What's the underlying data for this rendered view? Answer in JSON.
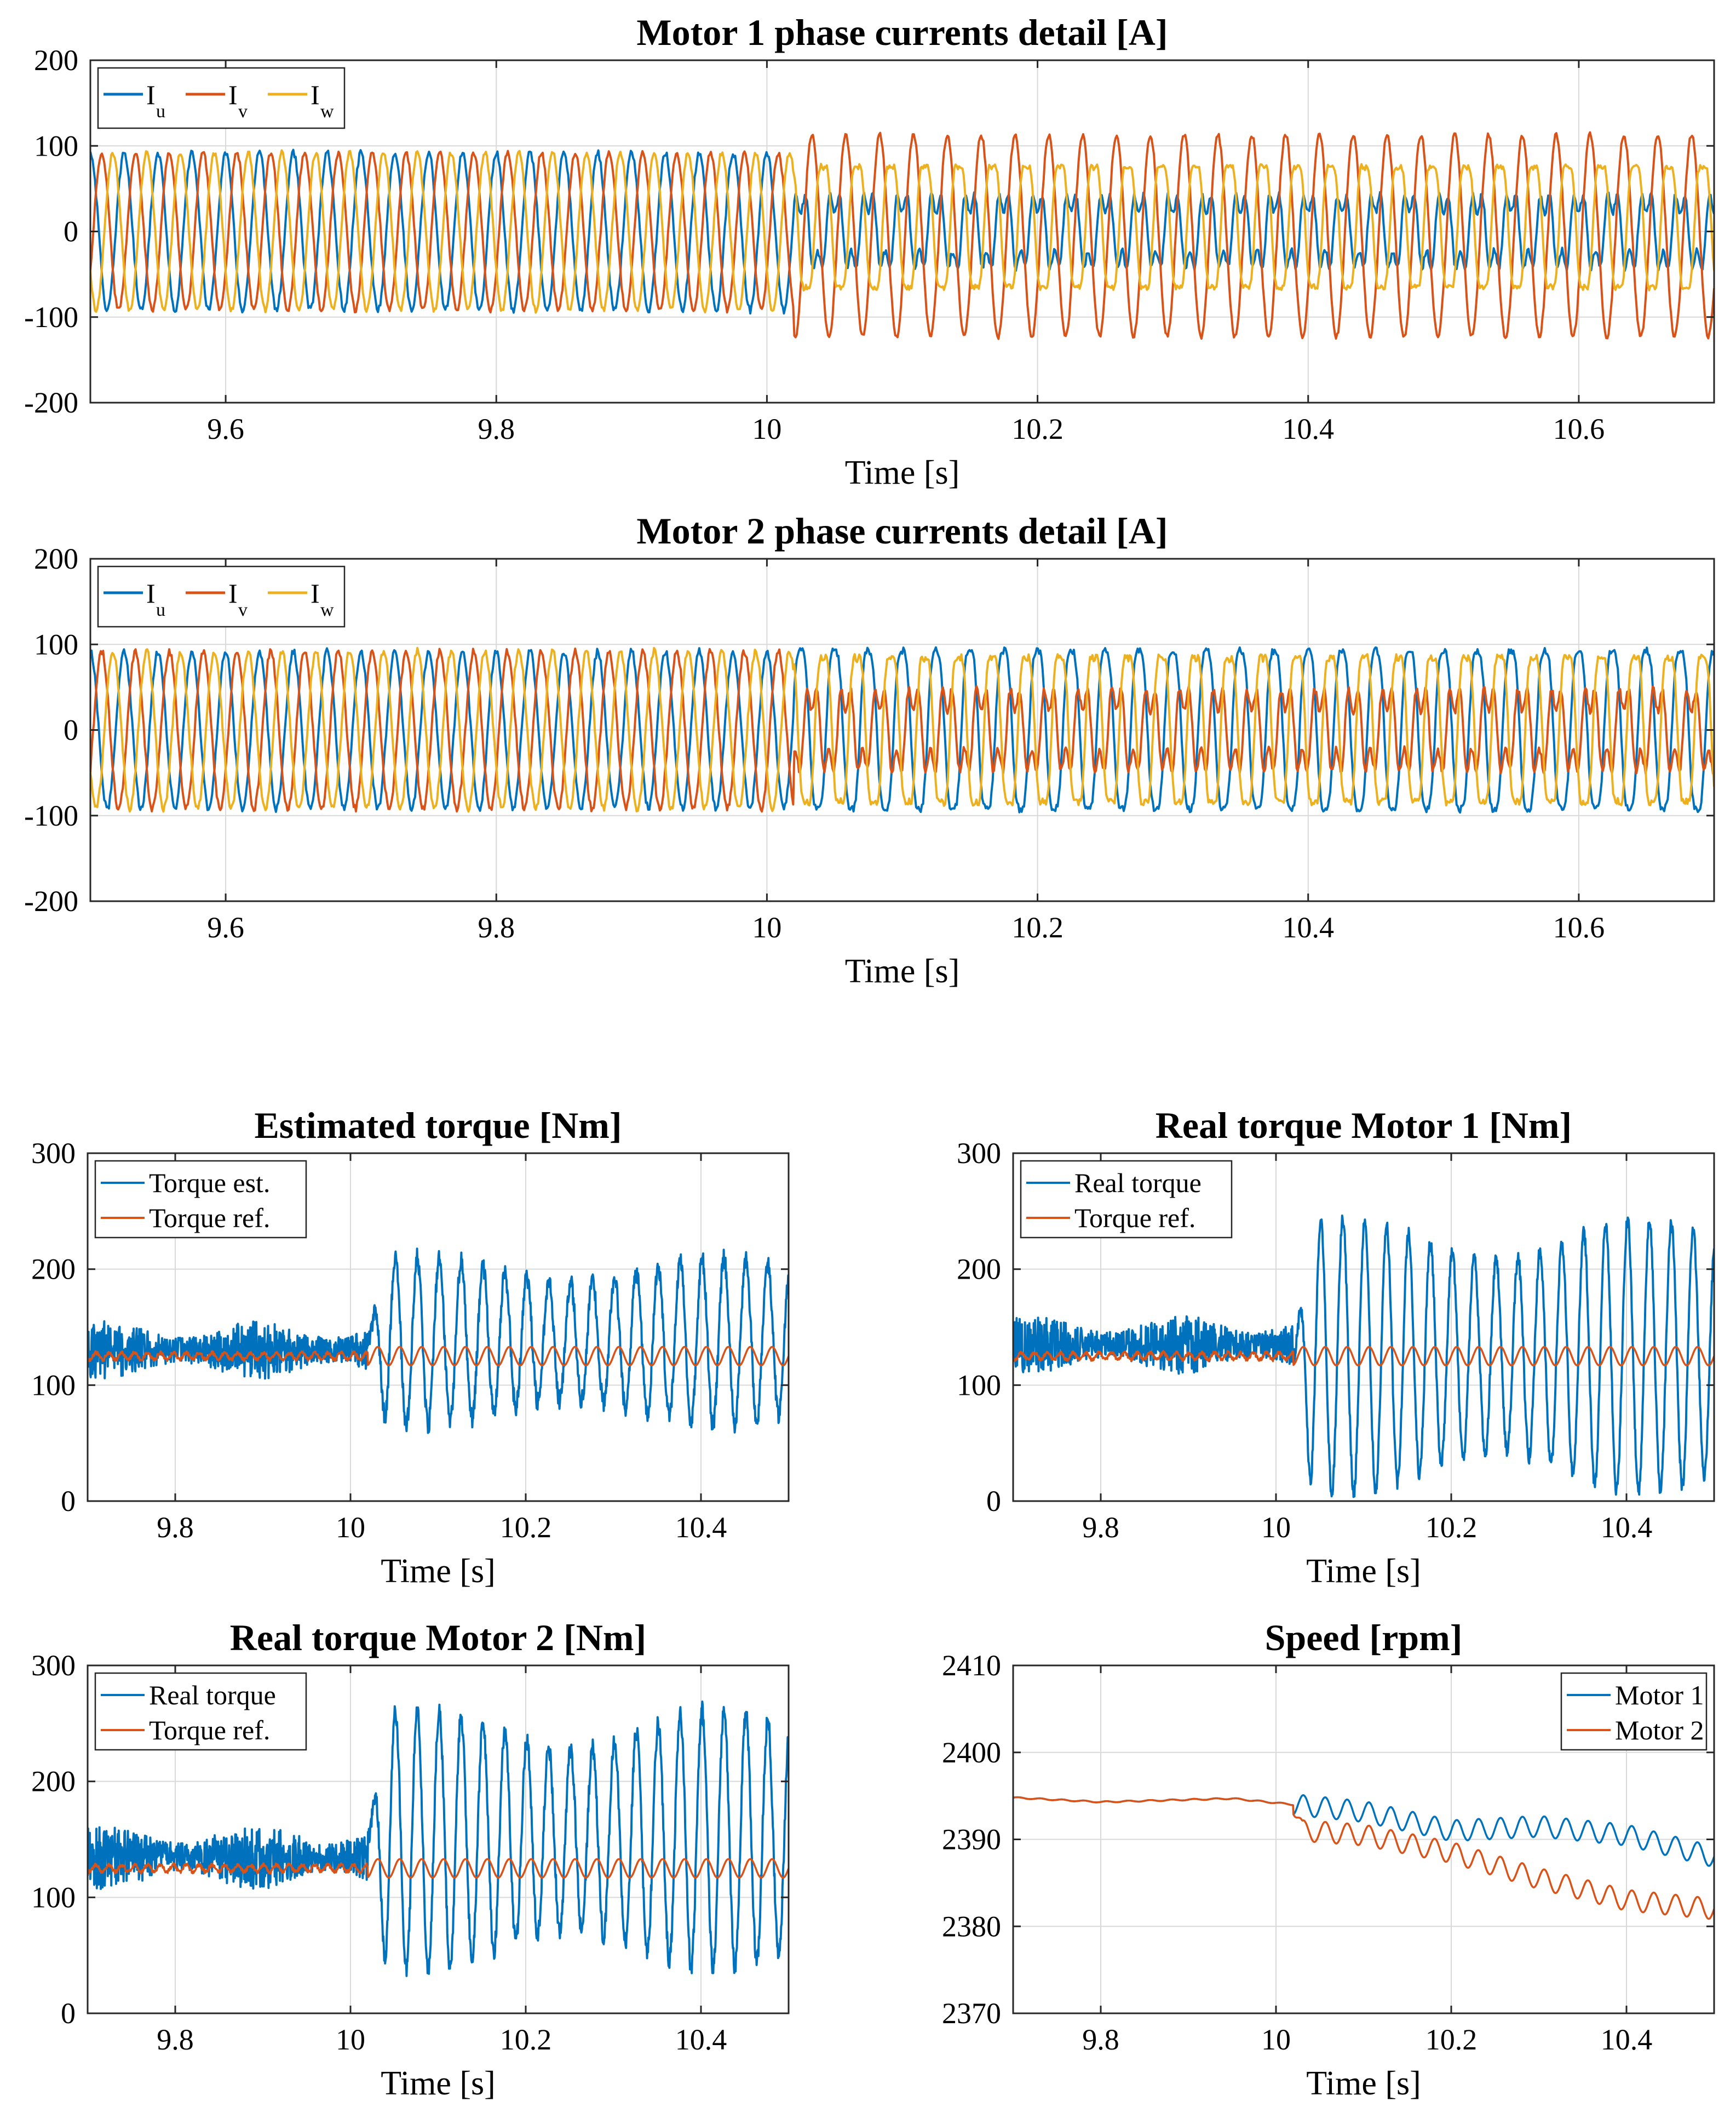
{
  "figure": {
    "background": "#ffffff"
  },
  "colors": {
    "blue": "#0072BD",
    "orange": "#D95319",
    "yellow": "#EDB120"
  },
  "chart_data": [
    {
      "id": "m1cur",
      "type": "line",
      "title": "Motor 1 phase currents detail [A]",
      "xlabel": "Time [s]",
      "ylabel": "",
      "xlim": [
        9.5,
        10.7
      ],
      "ylim": [
        -200,
        200
      ],
      "xticks": [
        9.6,
        9.8,
        10,
        10.2,
        10.4,
        10.6
      ],
      "xtick_labels": [
        "9.6",
        "9.8",
        "10",
        "10.2",
        "10.4",
        "10.6"
      ],
      "yticks": [
        -200,
        -100,
        0,
        100,
        200
      ],
      "ytick_labels": [
        "-200",
        "-100",
        "0",
        "100",
        "200"
      ],
      "grid": true,
      "legend": "top-left",
      "legend_horizontal": true,
      "series": [
        {
          "name": "I",
          "sub": "u",
          "color": "#0072BD",
          "model": {
            "kind": "phase",
            "phase_deg": 90,
            "freq_hz": 40,
            "amp_before": 92,
            "amp_after": 50,
            "bias_after": 0,
            "dist_after": 0.45,
            "noise": 4,
            "step_time": 10.02
          }
        },
        {
          "name": "I",
          "sub": "v",
          "color": "#D95319",
          "model": {
            "kind": "phase",
            "phase_deg": -30,
            "freq_hz": 40,
            "amp_before": 92,
            "amp_after": 118,
            "bias_after": -5,
            "dist_after": 0.0,
            "noise": 3,
            "step_time": 10.02
          }
        },
        {
          "name": "I",
          "sub": "w",
          "color": "#EDB120",
          "model": {
            "kind": "phase",
            "phase_deg": 210,
            "freq_hz": 40,
            "amp_before": 92,
            "amp_after": 88,
            "bias_after": 5,
            "dist_after": 0.15,
            "noise": 3,
            "step_time": 10.02
          }
        }
      ]
    },
    {
      "id": "m2cur",
      "type": "line",
      "title": "Motor 2 phase currents detail [A]",
      "xlabel": "Time [s]",
      "ylabel": "",
      "xlim": [
        9.5,
        10.7
      ],
      "ylim": [
        -200,
        200
      ],
      "xticks": [
        9.6,
        9.8,
        10,
        10.2,
        10.4,
        10.6
      ],
      "xtick_labels": [
        "9.6",
        "9.8",
        "10",
        "10.2",
        "10.4",
        "10.6"
      ],
      "yticks": [
        -200,
        -100,
        0,
        100,
        200
      ],
      "ytick_labels": [
        "-200",
        "-100",
        "0",
        "100",
        "200"
      ],
      "grid": true,
      "legend": "top-left",
      "legend_horizontal": true,
      "series": [
        {
          "name": "I",
          "sub": "u",
          "color": "#0072BD",
          "model": {
            "kind": "phase",
            "phase_deg": 90,
            "freq_hz": 40,
            "amp_before": 92,
            "amp_after": 108,
            "bias_after": 0,
            "dist_after": 0.1,
            "noise": 4,
            "step_time": 10.02
          }
        },
        {
          "name": "I",
          "sub": "v",
          "color": "#D95319",
          "model": {
            "kind": "phase",
            "phase_deg": -30,
            "freq_hz": 40,
            "amp_before": 92,
            "amp_after": 55,
            "bias_after": 0,
            "dist_after": 0.5,
            "noise": 4,
            "step_time": 10.02
          }
        },
        {
          "name": "I",
          "sub": "w",
          "color": "#EDB120",
          "model": {
            "kind": "phase",
            "phase_deg": 210,
            "freq_hz": 40,
            "amp_before": 92,
            "amp_after": 105,
            "bias_after": 0,
            "dist_after": 0.15,
            "noise": 4,
            "step_time": 10.02
          }
        }
      ]
    },
    {
      "id": "esttq",
      "type": "line",
      "title": "Estimated torque [Nm]",
      "xlabel": "Time [s]",
      "ylabel": "",
      "xlim": [
        9.7,
        10.5
      ],
      "ylim": [
        0,
        300
      ],
      "xticks": [
        9.8,
        10,
        10.2,
        10.4
      ],
      "xtick_labels": [
        "9.8",
        "10",
        "10.2",
        "10.4"
      ],
      "yticks": [
        0,
        100,
        200,
        300
      ],
      "ytick_labels": [
        "0",
        "100",
        "200",
        "300"
      ],
      "grid": true,
      "legend": "top-left",
      "legend_horizontal": false,
      "series": [
        {
          "name": "Torque est.",
          "color": "#0072BD",
          "model": {
            "kind": "torque",
            "mean": 130,
            "noise_before": 18,
            "amp_after": 72,
            "mean_after": 138,
            "freq_hz": 40,
            "step_time": 10.02,
            "noise": 8
          }
        },
        {
          "name": "Torque ref.",
          "color": "#D95319",
          "model": {
            "kind": "ref",
            "mean": 125,
            "ripple_before": 3,
            "ripple_after": 8,
            "freq_hz": 40,
            "step_time": 10.02
          }
        }
      ]
    },
    {
      "id": "rtq1",
      "type": "line",
      "title": "Real torque Motor 1 [Nm]",
      "xlabel": "Time [s]",
      "ylabel": "",
      "xlim": [
        9.7,
        10.5
      ],
      "ylim": [
        0,
        300
      ],
      "xticks": [
        9.8,
        10,
        10.2,
        10.4
      ],
      "xtick_labels": [
        "9.8",
        "10",
        "10.2",
        "10.4"
      ],
      "yticks": [
        0,
        100,
        200,
        300
      ],
      "ytick_labels": [
        "0",
        "100",
        "200",
        "300"
      ],
      "grid": true,
      "legend": "top-left",
      "legend_horizontal": false,
      "series": [
        {
          "name": "Real torque",
          "color": "#0072BD",
          "model": {
            "kind": "torque",
            "mean": 135,
            "noise_before": 18,
            "amp_after": 118,
            "mean_after": 125,
            "freq_hz": 40,
            "step_time": 10.02,
            "noise": 6
          }
        },
        {
          "name": "Torque ref.",
          "color": "#D95319",
          "model": {
            "kind": "ref",
            "mean": 125,
            "ripple_before": 3,
            "ripple_after": 8,
            "freq_hz": 40,
            "step_time": 10.02
          }
        }
      ]
    },
    {
      "id": "rtq2",
      "type": "line",
      "title": "Real torque Motor 2 [Nm]",
      "xlabel": "Time [s]",
      "ylabel": "",
      "xlim": [
        9.7,
        10.5
      ],
      "ylim": [
        0,
        300
      ],
      "xticks": [
        9.8,
        10,
        10.2,
        10.4
      ],
      "xtick_labels": [
        "9.8",
        "10",
        "10.2",
        "10.4"
      ],
      "yticks": [
        0,
        100,
        200,
        300
      ],
      "ytick_labels": [
        "0",
        "100",
        "200",
        "300"
      ],
      "grid": true,
      "legend": "top-left",
      "legend_horizontal": false,
      "series": [
        {
          "name": "Real torque",
          "color": "#0072BD",
          "model": {
            "kind": "torque",
            "mean": 135,
            "noise_before": 20,
            "amp_after": 112,
            "mean_after": 150,
            "freq_hz": 40,
            "step_time": 10.02,
            "noise": 8
          }
        },
        {
          "name": "Torque ref.",
          "color": "#D95319",
          "model": {
            "kind": "ref",
            "mean": 125,
            "ripple_before": 3,
            "ripple_after": 8,
            "freq_hz": 40,
            "step_time": 10.02
          }
        }
      ]
    },
    {
      "id": "speed",
      "type": "line",
      "title": "Speed [rpm]",
      "xlabel": "Time [s]",
      "ylabel": "",
      "xlim": [
        9.7,
        10.5
      ],
      "ylim": [
        2370,
        2410
      ],
      "xticks": [
        9.8,
        10,
        10.2,
        10.4
      ],
      "xtick_labels": [
        "9.8",
        "10",
        "10.2",
        "10.4"
      ],
      "yticks": [
        2370,
        2380,
        2390,
        2400,
        2410
      ],
      "ytick_labels": [
        "2370",
        "2380",
        "2390",
        "2400",
        "2410"
      ],
      "grid": true,
      "legend": "top-right",
      "legend_horizontal": false,
      "series": [
        {
          "name": "Motor 1",
          "color": "#0072BD",
          "model": {
            "kind": "speed",
            "points": [
              [
                9.7,
                2394.8
              ],
              [
                9.8,
                2394.3
              ],
              [
                9.95,
                2394.7
              ],
              [
                10.02,
                2394.0
              ],
              [
                10.1,
                2393.2
              ],
              [
                10.2,
                2391.0
              ],
              [
                10.3,
                2391.5
              ],
              [
                10.4,
                2390.5
              ],
              [
                10.5,
                2388.0
              ]
            ],
            "ripple_after": 1.2,
            "freq_hz": 40,
            "step_time": 10.02
          }
        },
        {
          "name": "Motor 2",
          "color": "#D95319",
          "model": {
            "kind": "speed",
            "points": [
              [
                9.7,
                2394.8
              ],
              [
                9.8,
                2394.3
              ],
              [
                9.95,
                2394.7
              ],
              [
                10.02,
                2394.0
              ],
              [
                10.03,
                2391.0
              ],
              [
                10.1,
                2390.5
              ],
              [
                10.2,
                2388.5
              ],
              [
                10.3,
                2385.5
              ],
              [
                10.4,
                2383.0
              ],
              [
                10.5,
                2382.0
              ]
            ],
            "ripple_after": 1.2,
            "freq_hz": 40,
            "step_time": 10.02
          }
        }
      ]
    }
  ]
}
